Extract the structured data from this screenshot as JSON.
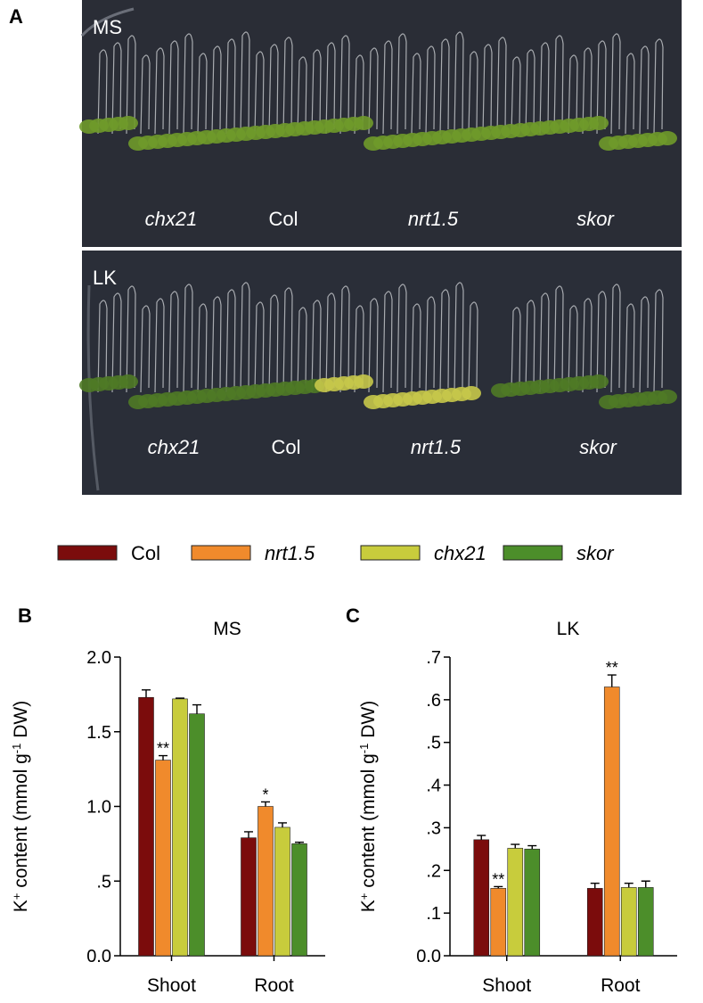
{
  "panel_a": {
    "label": "A",
    "plates": [
      {
        "condition": "MS",
        "genotypes": [
          "chx21",
          "Col",
          "nrt1.5",
          "skor"
        ]
      },
      {
        "condition": "LK",
        "genotypes": [
          "chx21",
          "Col",
          "nrt1.5",
          "skor"
        ]
      }
    ]
  },
  "chart_data": [
    {
      "type": "bar",
      "panel": "B",
      "title": "MS",
      "y_label": [
        "K",
        "+",
        " content (mmol g",
        "-1",
        " DW)"
      ],
      "categories": [
        "Shoot",
        "Root"
      ],
      "series": [
        {
          "name": "Col",
          "color": "#7b0c0c",
          "values": [
            1.73,
            0.79
          ],
          "errors": [
            0.05,
            0.04
          ]
        },
        {
          "name": "nrt1.5",
          "color": "#f08a2c",
          "values": [
            1.31,
            1.0
          ],
          "errors": [
            0.03,
            0.03
          ],
          "annotations": [
            "**",
            "*"
          ]
        },
        {
          "name": "chx21",
          "color": "#c8cc3c",
          "values": [
            1.72,
            0.86
          ],
          "errors": [
            0.005,
            0.03
          ]
        },
        {
          "name": "skor",
          "color": "#4c8e2a",
          "values": [
            1.62,
            0.75
          ],
          "errors": [
            0.06,
            0.01
          ]
        }
      ],
      "ylim": [
        0,
        2.0
      ],
      "yticks": [
        {
          "value": 0,
          "label": "0.0"
        },
        {
          "value": 0.5,
          "label": ".5"
        },
        {
          "value": 1.0,
          "label": "1.0"
        },
        {
          "value": 1.5,
          "label": "1.5"
        },
        {
          "value": 2.0,
          "label": "2.0"
        }
      ]
    },
    {
      "type": "bar",
      "panel": "C",
      "title": "LK",
      "y_label": [
        "K",
        "+",
        " content (mmol g",
        "-1",
        " DW)"
      ],
      "categories": [
        "Shoot",
        "Root"
      ],
      "series": [
        {
          "color": "#7b0c0c",
          "values": [
            0.272,
            0.158
          ],
          "errors": [
            0.01,
            0.012
          ]
        },
        {
          "color": "#f08a2c",
          "values": [
            0.158,
            0.63
          ],
          "errors": [
            0.004,
            0.028
          ],
          "annotations": [
            "**",
            "**"
          ]
        },
        {
          "color": "#c8cc3c",
          "values": [
            0.252,
            0.16
          ],
          "errors": [
            0.009,
            0.01
          ]
        },
        {
          "color": "#4c8e2a",
          "values": [
            0.25,
            0.16
          ],
          "errors": [
            0.008,
            0.015
          ]
        }
      ],
      "ylim": [
        0,
        0.7
      ],
      "yticks": [
        {
          "value": 0,
          "label": "0.0"
        },
        {
          "value": 0.1,
          "label": ".1"
        },
        {
          "value": 0.2,
          "label": ".2"
        },
        {
          "value": 0.3,
          "label": ".3"
        },
        {
          "value": 0.4,
          "label": ".4"
        },
        {
          "value": 0.5,
          "label": ".5"
        },
        {
          "value": 0.6,
          "label": ".6"
        },
        {
          "value": 0.7,
          "label": ".7"
        }
      ]
    }
  ]
}
